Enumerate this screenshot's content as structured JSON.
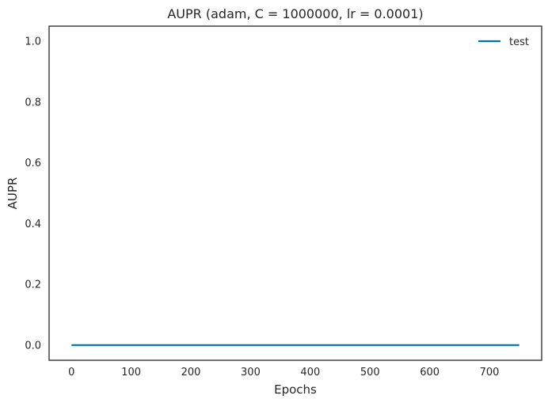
{
  "chart_data": {
    "type": "line",
    "title": "AUPR (adam, C = 1000000, lr = 0.0001)",
    "xlabel": "Epochs",
    "ylabel": "AUPR",
    "xlim": [
      -37.5,
      787.5
    ],
    "ylim": [
      -0.05,
      1.05
    ],
    "x_ticks": [
      0,
      100,
      200,
      300,
      400,
      500,
      600,
      700
    ],
    "y_ticks": [
      0.0,
      0.2,
      0.4,
      0.6,
      0.8,
      1.0
    ],
    "x_tick_labels": [
      "0",
      "100",
      "200",
      "300",
      "400",
      "500",
      "600",
      "700"
    ],
    "y_tick_labels": [
      "0.0",
      "0.2",
      "0.4",
      "0.6",
      "0.8",
      "1.0"
    ],
    "grid": false,
    "legend_position": "top-right",
    "series": [
      {
        "name": "test",
        "color": "#0072b2",
        "x": [
          0,
          750
        ],
        "y": [
          0.0,
          0.0
        ]
      }
    ]
  }
}
